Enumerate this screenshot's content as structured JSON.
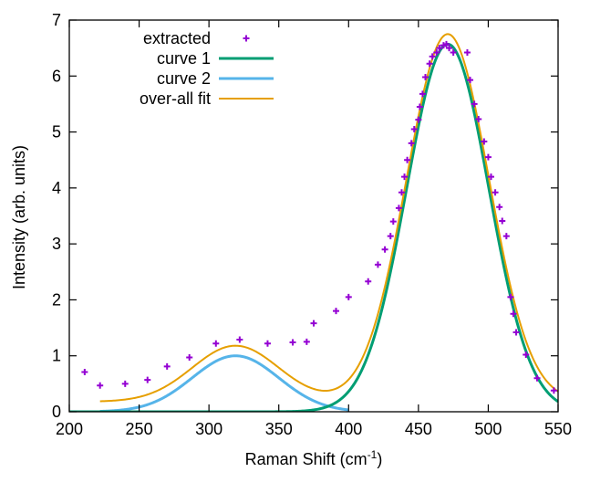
{
  "chart_data": {
    "type": "line",
    "xlabel": "Raman Shift (cm",
    "xlabel_sup": "-1",
    "xlabel_end": ")",
    "ylabel": "Intensity (arb. units)",
    "xlim": [
      200,
      550
    ],
    "ylim": [
      0,
      7
    ],
    "xticks": [
      200,
      250,
      300,
      350,
      400,
      450,
      500,
      550
    ],
    "yticks": [
      0,
      1,
      2,
      3,
      4,
      5,
      6,
      7
    ],
    "grid": false,
    "legend_position": "top-left",
    "series": [
      {
        "name": "extracted",
        "kind": "points",
        "marker": "+",
        "color": "#9400d3",
        "x": [
          211,
          222,
          240,
          256,
          270,
          286,
          305,
          322,
          342,
          360,
          370,
          375,
          391,
          400,
          414,
          421,
          426,
          430,
          432,
          436,
          438,
          440,
          442,
          445,
          447,
          450,
          451,
          453,
          455,
          458,
          460,
          463,
          465,
          468,
          470,
          472,
          475,
          485,
          487,
          490,
          493,
          497,
          500,
          502,
          505,
          508,
          510,
          513,
          516,
          518,
          520,
          527,
          535,
          547
        ],
        "y": [
          0.71,
          0.47,
          0.5,
          0.57,
          0.81,
          0.97,
          1.22,
          1.29,
          1.22,
          1.24,
          1.25,
          1.58,
          1.8,
          2.05,
          2.33,
          2.63,
          2.9,
          3.14,
          3.4,
          3.64,
          3.92,
          4.2,
          4.5,
          4.8,
          5.05,
          5.22,
          5.45,
          5.68,
          5.98,
          6.22,
          6.35,
          6.42,
          6.5,
          6.55,
          6.57,
          6.5,
          6.42,
          6.42,
          5.93,
          5.5,
          5.23,
          4.83,
          4.55,
          4.2,
          3.92,
          3.66,
          3.41,
          3.14,
          2.05,
          1.75,
          1.42,
          1.02,
          0.6,
          0.38
        ]
      },
      {
        "name": "curve 1",
        "kind": "gaussian",
        "color": "#009e73",
        "amplitude": 6.57,
        "center": 471,
        "sigma": 29.5,
        "baseline": 0,
        "x_range": [
          200,
          550
        ]
      },
      {
        "name": "curve 2",
        "kind": "gaussian",
        "color": "#56b4e9",
        "amplitude": 1.0,
        "center": 319,
        "sigma": 31,
        "baseline": 0,
        "x_range": [
          222,
          400
        ]
      },
      {
        "name": "over-all fit",
        "kind": "sum",
        "color": "#e69f00",
        "components": [
          "curve 1",
          "curve 2"
        ],
        "baseline": 0.18,
        "x_range": [
          222,
          550
        ]
      }
    ]
  }
}
